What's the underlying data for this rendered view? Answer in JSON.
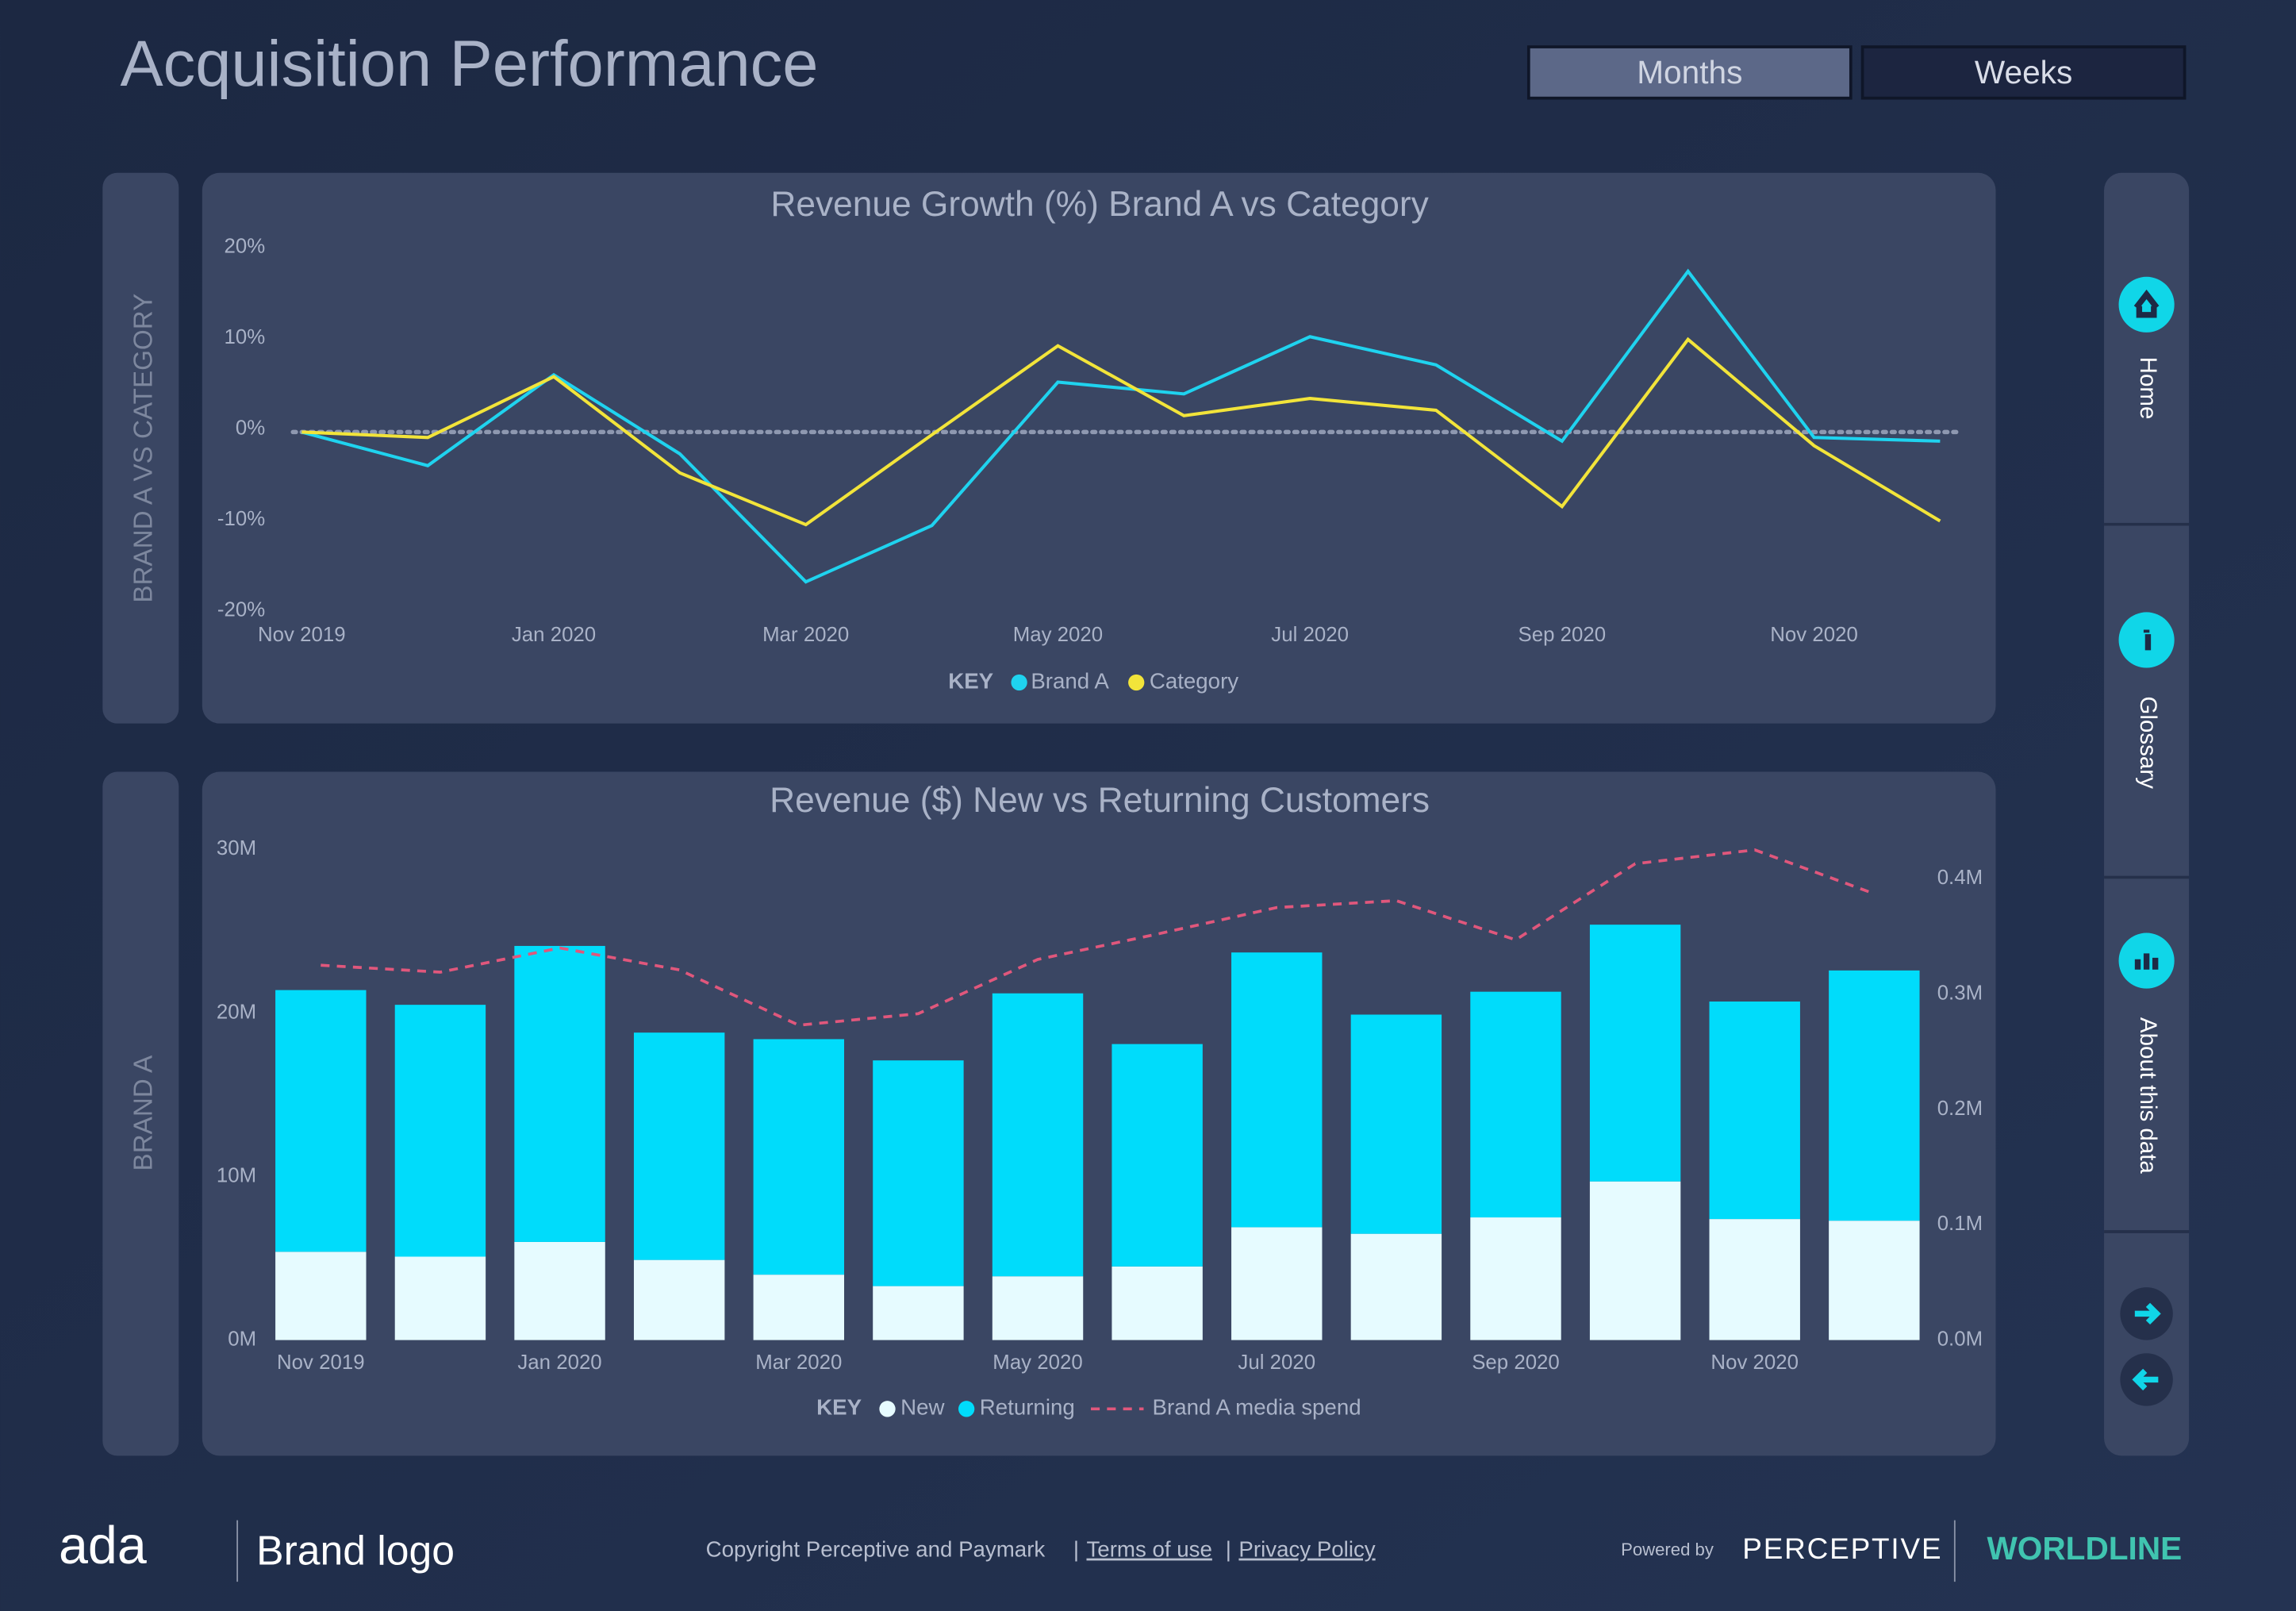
{
  "header": {
    "title": "Acquisition Performance",
    "tabs": [
      "Months",
      "Weeks"
    ]
  },
  "panels": [
    "BRAND A VS CATEGORY",
    "BRAND A"
  ],
  "nav": [
    "Home",
    "Glossary",
    "About this data"
  ],
  "footer": {
    "logo": "ada",
    "brand": "Brand logo",
    "copyright": "Copyright Perceptive and Paymark",
    "separator": "|",
    "links": [
      "Terms of use",
      "Privacy Policy"
    ],
    "powered_by": "Powered by",
    "partner": "PERCEPTIVE",
    "network": "WORLDLINE"
  },
  "chart_data": [
    {
      "type": "line",
      "title": "Revenue Growth (%) Brand A vs Category",
      "legend_title": "KEY",
      "zero_line": true,
      "categories": [
        "Nov 2019",
        null,
        "Jan 2020",
        null,
        "Mar 2020",
        null,
        "May 2020",
        null,
        "Jul 2020",
        null,
        "Sep 2020",
        null,
        "Nov 2020",
        null
      ],
      "series": [
        {
          "name": "Brand A",
          "color": "#1fd3ef",
          "values": [
            0,
            -3.7,
            6.3,
            -2.4,
            -16.5,
            -10.3,
            5.5,
            4.2,
            10.5,
            7.4,
            -1,
            17.7,
            -0.6,
            -1
          ]
        },
        {
          "name": "Category",
          "color": "#f2e43a",
          "values": [
            0,
            -0.6,
            6.1,
            -4.5,
            -10.2,
            -0.3,
            9.5,
            1.8,
            3.7,
            2.4,
            -8.2,
            10.2,
            -1.5,
            -9.8
          ]
        }
      ],
      "ylim": [
        -20,
        20
      ],
      "yticks": [
        {
          "value": -20,
          "label": "-20%"
        },
        {
          "value": -10,
          "label": "-10%"
        },
        {
          "value": 0,
          "label": "0%"
        },
        {
          "value": 10,
          "label": "10%"
        },
        {
          "value": 20,
          "label": "20%"
        }
      ]
    },
    {
      "type": "stacked_bar",
      "title": "Revenue ($) New vs Returning Customers",
      "legend_title": "KEY",
      "categories": [
        "Nov 2019",
        null,
        "Jan 2020",
        null,
        "Mar 2020",
        null,
        "May 2020",
        null,
        "Jul 2020",
        null,
        "Sep 2020",
        null,
        "Nov 2020",
        null
      ],
      "series": [
        {
          "name": "New",
          "color": "#e6fbff",
          "values": [
            5.4,
            5.1,
            6.0,
            4.9,
            4.0,
            3.3,
            3.9,
            4.5,
            6.9,
            6.5,
            7.5,
            9.7,
            7.4,
            7.3
          ]
        },
        {
          "name": "Returning",
          "color": "#00dcfb",
          "values": [
            16.0,
            15.4,
            18.1,
            13.9,
            14.4,
            13.8,
            17.3,
            13.6,
            16.8,
            13.4,
            13.8,
            15.7,
            13.3,
            15.3
          ]
        },
        {
          "name": "Brand A media spend",
          "color": "#e0577c",
          "style": "dashed",
          "axis": "y2",
          "values": [
            0.325,
            0.319,
            0.34,
            0.321,
            0.273,
            0.283,
            0.33,
            0.352,
            0.375,
            0.381,
            0.347,
            0.413,
            0.425,
            0.387
          ]
        }
      ],
      "ylim": [
        0,
        30
      ],
      "yticks": [
        {
          "value": 0,
          "label": "0M"
        },
        {
          "value": 10,
          "label": "10M"
        },
        {
          "value": 20,
          "label": "20M"
        },
        {
          "value": 30,
          "label": "30M"
        }
      ],
      "y2lim": [
        0,
        0.4
      ],
      "y2ticks": [
        {
          "value": 0,
          "label": "0.0M"
        },
        {
          "value": 0.1,
          "label": "0.1M"
        },
        {
          "value": 0.2,
          "label": "0.2M"
        },
        {
          "value": 0.3,
          "label": "0.3M"
        },
        {
          "value": 0.4,
          "label": "0.4M"
        }
      ]
    }
  ]
}
